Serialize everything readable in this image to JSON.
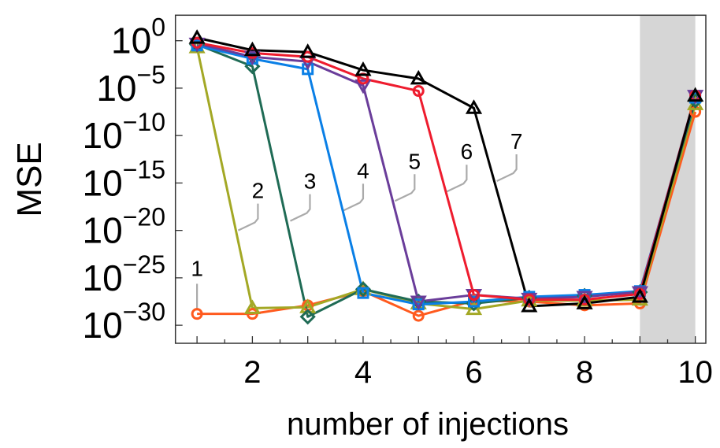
{
  "chart_data": {
    "type": "line",
    "title": "",
    "xlabel": "number of injections",
    "ylabel": "MSE",
    "yscale": "log",
    "xlim": [
      0.61,
      10.19
    ],
    "ylim_log10": [
      -31.9,
      2.69
    ],
    "xticks": [
      2,
      4,
      6,
      8,
      10
    ],
    "yticks": [
      {
        "base": "10",
        "exp": "0",
        "log": 0
      },
      {
        "base": "10",
        "exp": "−5",
        "log": -5
      },
      {
        "base": "10",
        "exp": "−10",
        "log": -10
      },
      {
        "base": "10",
        "exp": "−15",
        "log": -15
      },
      {
        "base": "10",
        "exp": "−20",
        "log": -20
      },
      {
        "base": "10",
        "exp": "−25",
        "log": -25
      },
      {
        "base": "10",
        "exp": "−30",
        "log": -30
      }
    ],
    "shaded_region": {
      "x": [
        9,
        10
      ],
      "color": "#d6d6d6"
    },
    "x": [
      1,
      2,
      3,
      4,
      5,
      6,
      7,
      8,
      9,
      10
    ],
    "series": [
      {
        "name": "1",
        "color": "#ff5a1e",
        "marker": "circle",
        "log10_values": [
          -28.8,
          -28.8,
          -27.9,
          -26.4,
          -29.0,
          -27.4,
          -27.5,
          -27.9,
          -27.7,
          -7.5
        ]
      },
      {
        "name": "2",
        "color": "#a3a825",
        "marker": "triangle-up",
        "log10_values": [
          -0.7,
          -28.2,
          -28.1,
          -26.2,
          -27.7,
          -28.3,
          -27.4,
          -27.4,
          -27.3,
          -6.7
        ]
      },
      {
        "name": "3",
        "color": "#1f6b55",
        "marker": "diamond",
        "log10_values": [
          -0.4,
          -2.7,
          -29.1,
          -26.2,
          -27.5,
          -27.7,
          -27.1,
          -26.9,
          -26.5,
          -6.3
        ]
      },
      {
        "name": "4",
        "color": "#0a7fe6",
        "marker": "square",
        "log10_values": [
          -0.5,
          -1.9,
          -3.0,
          -26.6,
          -27.8,
          -27.5,
          -27.0,
          -26.8,
          -26.4,
          -6.0
        ]
      },
      {
        "name": "5",
        "color": "#6a3d9a",
        "marker": "triangle-down",
        "log10_values": [
          -0.3,
          -1.7,
          -2.2,
          -4.7,
          -27.5,
          -26.8,
          -27.2,
          -27.0,
          -26.5,
          -5.8
        ]
      },
      {
        "name": "6",
        "color": "#ee1c2e",
        "marker": "circle",
        "log10_values": [
          -0.2,
          -1.3,
          -1.7,
          -4.0,
          -5.3,
          -26.8,
          -27.3,
          -27.3,
          -26.7,
          -5.8
        ]
      },
      {
        "name": "7",
        "color": "#000000",
        "marker": "triangle-up",
        "log10_values": [
          0.3,
          -1.0,
          -1.2,
          -3.1,
          -4.0,
          -7.1,
          -28.0,
          -27.7,
          -27.0,
          -5.8
        ]
      }
    ],
    "annotations": [
      {
        "text": "1",
        "x": 1.0,
        "log10_y": -23.8
      },
      {
        "text": "2",
        "x": 2.1,
        "log10_y": -15.6
      },
      {
        "text": "3",
        "x": 3.04,
        "log10_y": -14.6
      },
      {
        "text": "4",
        "x": 4.0,
        "log10_y": -13.5
      },
      {
        "text": "5",
        "x": 4.93,
        "log10_y": -12.5
      },
      {
        "text": "6",
        "x": 5.87,
        "log10_y": -11.5
      },
      {
        "text": "7",
        "x": 6.77,
        "log10_y": -10.4
      }
    ]
  }
}
